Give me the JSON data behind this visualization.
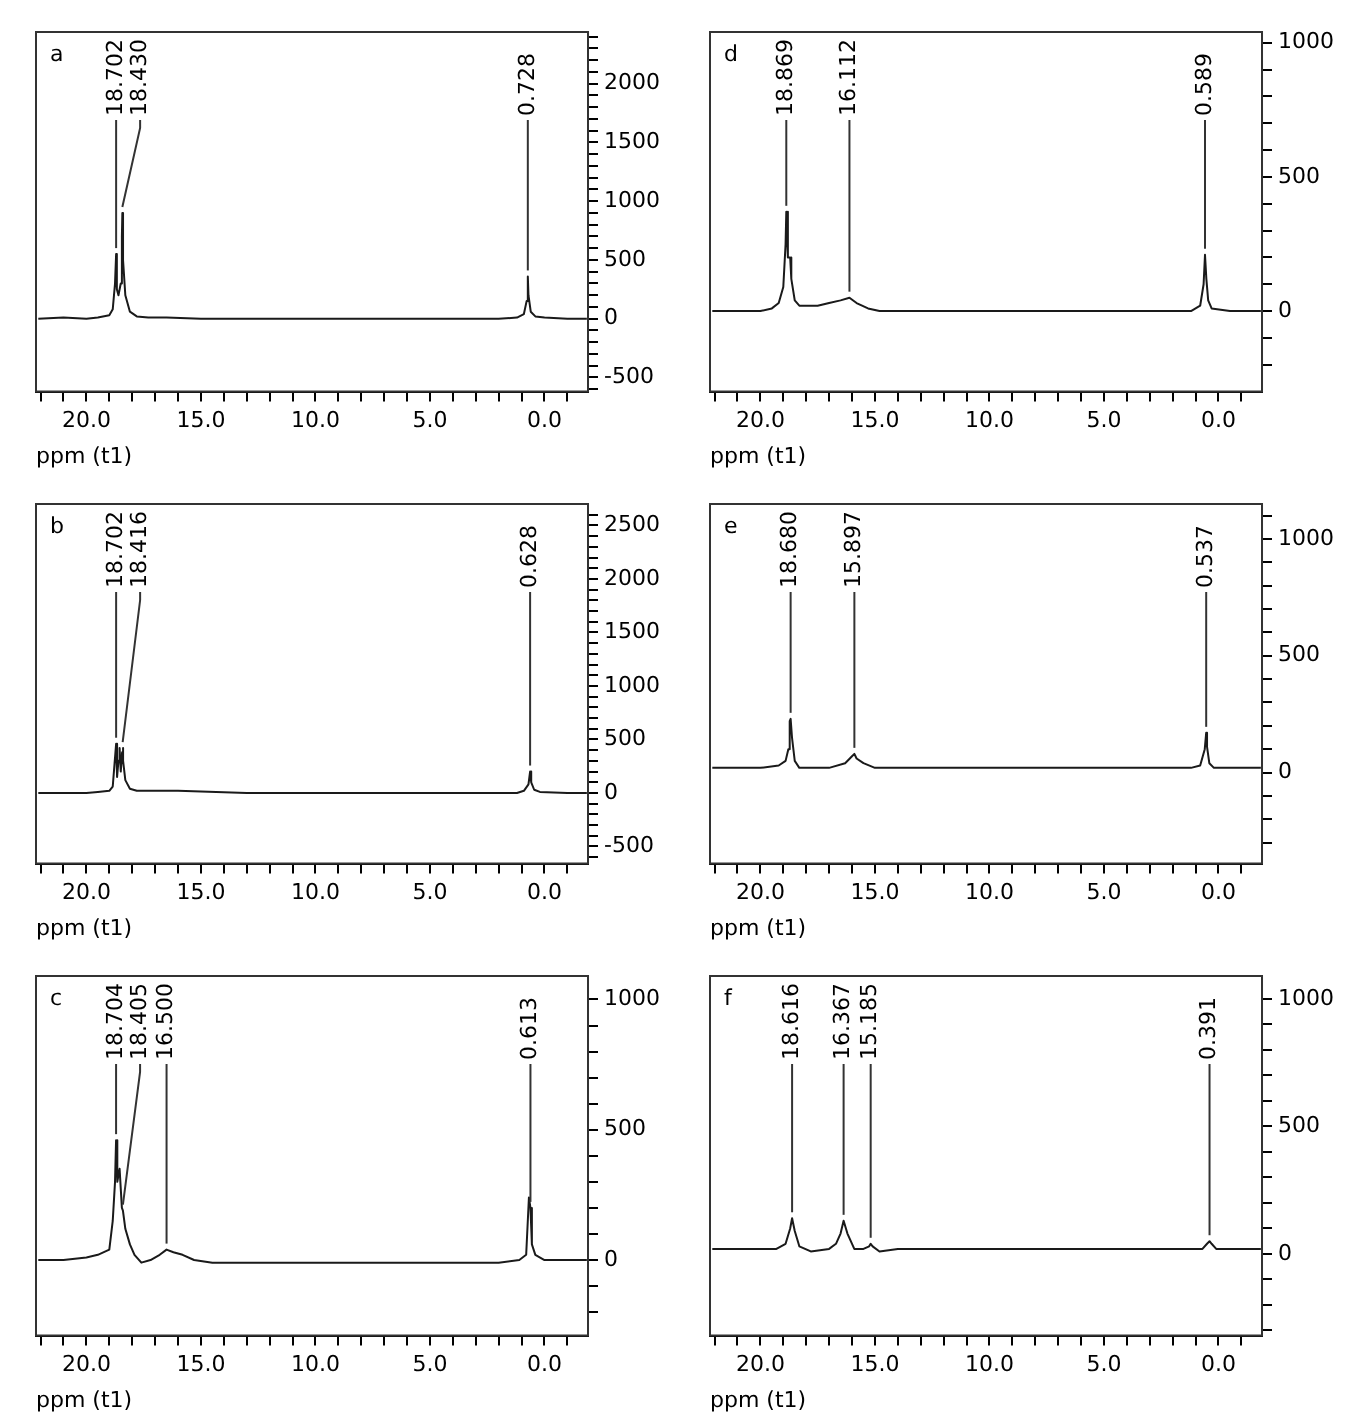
{
  "chart_data": [
    {
      "type": "line",
      "title": "a",
      "xlabel": "ppm (t1)",
      "xlim": [
        22.2,
        -1.9
      ],
      "ylim": [
        -620,
        2440
      ],
      "xticks": [
        {
          "value": 22,
          "label": null
        },
        {
          "value": 21,
          "label": null
        },
        {
          "value": 20,
          "label": "20.0"
        },
        {
          "value": 19,
          "label": null
        },
        {
          "value": 18,
          "label": null
        },
        {
          "value": 17,
          "label": null
        },
        {
          "value": 16,
          "label": null
        },
        {
          "value": 15,
          "label": "15.0"
        },
        {
          "value": 14,
          "label": null
        },
        {
          "value": 13,
          "label": null
        },
        {
          "value": 12,
          "label": null
        },
        {
          "value": 11,
          "label": null
        },
        {
          "value": 10,
          "label": "10.0"
        },
        {
          "value": 9,
          "label": null
        },
        {
          "value": 8,
          "label": null
        },
        {
          "value": 7,
          "label": null
        },
        {
          "value": 6,
          "label": null
        },
        {
          "value": 5,
          "label": "5.0"
        },
        {
          "value": 4,
          "label": null
        },
        {
          "value": 3,
          "label": null
        },
        {
          "value": 2,
          "label": null
        },
        {
          "value": 1,
          "label": null
        },
        {
          "value": 0,
          "label": "0.0"
        },
        {
          "value": -1,
          "label": null
        }
      ],
      "yticks": [
        {
          "value": -600,
          "label": null
        },
        -500,
        {
          "value": -400,
          "label": null
        },
        {
          "value": -300,
          "label": null
        },
        {
          "value": -200,
          "label": null
        },
        {
          "value": -100,
          "label": null
        },
        0,
        {
          "value": 100,
          "label": null
        },
        {
          "value": 200,
          "label": null
        },
        {
          "value": 300,
          "label": null
        },
        {
          "value": 400,
          "label": null
        },
        500,
        {
          "value": 600,
          "label": null
        },
        {
          "value": 700,
          "label": null
        },
        {
          "value": 800,
          "label": null
        },
        {
          "value": 900,
          "label": null
        },
        1000,
        {
          "value": 1100,
          "label": null
        },
        {
          "value": 1200,
          "label": null
        },
        {
          "value": 1300,
          "label": null
        },
        {
          "value": 1400,
          "label": null
        },
        1500,
        {
          "value": 1600,
          "label": null
        },
        {
          "value": 1700,
          "label": null
        },
        {
          "value": 1800,
          "label": null
        },
        {
          "value": 1900,
          "label": null
        },
        2000,
        {
          "value": 2100,
          "label": null
        },
        {
          "value": 2200,
          "label": null
        },
        {
          "value": 2300,
          "label": null
        },
        {
          "value": 2400,
          "label": null
        }
      ],
      "series": [
        {
          "color": "#1a1a1a",
          "x": [
            22.1,
            21,
            20,
            19.5,
            19,
            18.85,
            18.75,
            18.702,
            18.67,
            18.6,
            18.5,
            18.45,
            18.43,
            18.4,
            18.3,
            18.1,
            17.8,
            17.3,
            16.5,
            15,
            13,
            10,
            7,
            4,
            2,
            1.2,
            0.9,
            0.78,
            0.728,
            0.7,
            0.6,
            0.4,
            0,
            -1,
            -1.85
          ],
          "values": [
            0,
            10,
            0,
            10,
            30,
            80,
            300,
            550,
            250,
            200,
            300,
            700,
            900,
            500,
            200,
            60,
            20,
            10,
            10,
            0,
            0,
            0,
            0,
            0,
            0,
            10,
            40,
            150,
            360,
            200,
            60,
            20,
            10,
            0,
            0
          ]
        }
      ],
      "annotations": [
        {
          "text": "18.702",
          "x": 18.702,
          "y": 550
        },
        {
          "text": "18.430",
          "x": 18.43,
          "y": 900
        },
        {
          "text": "0.728",
          "x": 0.728,
          "y": 360
        }
      ]
    },
    {
      "type": "line",
      "title": "d",
      "xlabel": "ppm (t1)",
      "xlim": [
        22.2,
        -1.9
      ],
      "ylim": [
        -300,
        1040
      ],
      "xticks": [
        {
          "value": 22,
          "label": null
        },
        {
          "value": 21,
          "label": null
        },
        {
          "value": 20,
          "label": "20.0"
        },
        {
          "value": 19,
          "label": null
        },
        {
          "value": 18,
          "label": null
        },
        {
          "value": 17,
          "label": null
        },
        {
          "value": 16,
          "label": null
        },
        {
          "value": 15,
          "label": "15.0"
        },
        {
          "value": 14,
          "label": null
        },
        {
          "value": 13,
          "label": null
        },
        {
          "value": 12,
          "label": null
        },
        {
          "value": 11,
          "label": null
        },
        {
          "value": 10,
          "label": "10.0"
        },
        {
          "value": 9,
          "label": null
        },
        {
          "value": 8,
          "label": null
        },
        {
          "value": 7,
          "label": null
        },
        {
          "value": 6,
          "label": null
        },
        {
          "value": 5,
          "label": "5.0"
        },
        {
          "value": 4,
          "label": null
        },
        {
          "value": 3,
          "label": null
        },
        {
          "value": 2,
          "label": null
        },
        {
          "value": 1,
          "label": null
        },
        {
          "value": 0,
          "label": "0.0"
        },
        {
          "value": -1,
          "label": null
        }
      ],
      "yticks": [
        {
          "value": -200,
          "label": null
        },
        {
          "value": -100,
          "label": null
        },
        0,
        {
          "value": 100,
          "label": null
        },
        {
          "value": 200,
          "label": null
        },
        {
          "value": 300,
          "label": null
        },
        {
          "value": 400,
          "label": null
        },
        500,
        {
          "value": 600,
          "label": null
        },
        {
          "value": 700,
          "label": null
        },
        {
          "value": 800,
          "label": null
        },
        {
          "value": 900,
          "label": null
        },
        1000
      ],
      "series": [
        {
          "color": "#1a1a1a",
          "x": [
            22.1,
            21,
            20,
            19.5,
            19.2,
            19.0,
            18.9,
            18.869,
            18.8,
            18.7,
            18.65,
            18.5,
            18.3,
            18,
            17.5,
            17,
            16.5,
            16.112,
            15.8,
            15.3,
            14.8,
            13,
            10,
            7,
            4,
            2,
            1.2,
            0.8,
            0.65,
            0.589,
            0.53,
            0.45,
            0.3,
            -0.5,
            -1.85
          ],
          "values": [
            0,
            0,
            0,
            10,
            30,
            90,
            250,
            370,
            200,
            200,
            120,
            40,
            20,
            20,
            20,
            30,
            40,
            50,
            30,
            10,
            0,
            0,
            0,
            0,
            0,
            0,
            0,
            20,
            100,
            210,
            120,
            40,
            10,
            0,
            0
          ]
        }
      ],
      "annotations": [
        {
          "text": "18.869",
          "x": 18.869,
          "y": 370
        },
        {
          "text": "16.112",
          "x": 16.112,
          "y": 50
        },
        {
          "text": "0.589",
          "x": 0.589,
          "y": 210
        }
      ]
    },
    {
      "type": "line",
      "title": "b",
      "xlabel": "ppm (t1)",
      "xlim": [
        22.2,
        -1.9
      ],
      "ylim": [
        -660,
        2700
      ],
      "xticks": [
        {
          "value": 22,
          "label": null
        },
        {
          "value": 21,
          "label": null
        },
        {
          "value": 20,
          "label": "20.0"
        },
        {
          "value": 19,
          "label": null
        },
        {
          "value": 18,
          "label": null
        },
        {
          "value": 17,
          "label": null
        },
        {
          "value": 16,
          "label": null
        },
        {
          "value": 15,
          "label": "15.0"
        },
        {
          "value": 14,
          "label": null
        },
        {
          "value": 13,
          "label": null
        },
        {
          "value": 12,
          "label": null
        },
        {
          "value": 11,
          "label": null
        },
        {
          "value": 10,
          "label": "10.0"
        },
        {
          "value": 9,
          "label": null
        },
        {
          "value": 8,
          "label": null
        },
        {
          "value": 7,
          "label": null
        },
        {
          "value": 6,
          "label": null
        },
        {
          "value": 5,
          "label": "5.0"
        },
        {
          "value": 4,
          "label": null
        },
        {
          "value": 3,
          "label": null
        },
        {
          "value": 2,
          "label": null
        },
        {
          "value": 1,
          "label": null
        },
        {
          "value": 0,
          "label": "0.0"
        },
        {
          "value": -1,
          "label": null
        }
      ],
      "yticks": [
        {
          "value": -600,
          "label": null
        },
        -500,
        {
          "value": -400,
          "label": null
        },
        {
          "value": -300,
          "label": null
        },
        {
          "value": -200,
          "label": null
        },
        {
          "value": -100,
          "label": null
        },
        0,
        {
          "value": 100,
          "label": null
        },
        {
          "value": 200,
          "label": null
        },
        {
          "value": 300,
          "label": null
        },
        {
          "value": 400,
          "label": null
        },
        500,
        {
          "value": 600,
          "label": null
        },
        {
          "value": 700,
          "label": null
        },
        {
          "value": 800,
          "label": null
        },
        {
          "value": 900,
          "label": null
        },
        1000,
        {
          "value": 1100,
          "label": null
        },
        {
          "value": 1200,
          "label": null
        },
        {
          "value": 1300,
          "label": null
        },
        {
          "value": 1400,
          "label": null
        },
        1500,
        {
          "value": 1600,
          "label": null
        },
        {
          "value": 1700,
          "label": null
        },
        {
          "value": 1800,
          "label": null
        },
        {
          "value": 1900,
          "label": null
        },
        2000,
        {
          "value": 2100,
          "label": null
        },
        {
          "value": 2200,
          "label": null
        },
        {
          "value": 2300,
          "label": null
        },
        {
          "value": 2400,
          "label": null
        },
        2500,
        {
          "value": 2600,
          "label": null
        }
      ],
      "series": [
        {
          "color": "#1a1a1a",
          "x": [
            22.1,
            21,
            20,
            19.5,
            19,
            18.85,
            18.702,
            18.66,
            18.6,
            18.55,
            18.5,
            18.44,
            18.416,
            18.38,
            18.3,
            18.1,
            17.8,
            17,
            16,
            13,
            10,
            7,
            4,
            2,
            1.2,
            0.9,
            0.7,
            0.628,
            0.58,
            0.45,
            0.2,
            -1,
            -1.85
          ],
          "values": [
            0,
            0,
            0,
            10,
            20,
            60,
            460,
            150,
            300,
            420,
            200,
            380,
            420,
            300,
            120,
            40,
            20,
            20,
            20,
            0,
            0,
            0,
            0,
            0,
            0,
            20,
            80,
            200,
            100,
            30,
            10,
            0,
            0
          ]
        }
      ],
      "annotations": [
        {
          "text": "18.702",
          "x": 18.702,
          "y": 460
        },
        {
          "text": "18.416",
          "x": 18.416,
          "y": 420
        },
        {
          "text": "0.628",
          "x": 0.628,
          "y": 200
        }
      ]
    },
    {
      "type": "line",
      "title": "e",
      "xlabel": "ppm (t1)",
      "xlim": [
        22.2,
        -1.9
      ],
      "ylim": [
        -390,
        1150
      ],
      "xticks": [
        {
          "value": 22,
          "label": null
        },
        {
          "value": 21,
          "label": null
        },
        {
          "value": 20,
          "label": "20.0"
        },
        {
          "value": 19,
          "label": null
        },
        {
          "value": 18,
          "label": null
        },
        {
          "value": 17,
          "label": null
        },
        {
          "value": 16,
          "label": null
        },
        {
          "value": 15,
          "label": "15.0"
        },
        {
          "value": 14,
          "label": null
        },
        {
          "value": 13,
          "label": null
        },
        {
          "value": 12,
          "label": null
        },
        {
          "value": 11,
          "label": null
        },
        {
          "value": 10,
          "label": "10.0"
        },
        {
          "value": 9,
          "label": null
        },
        {
          "value": 8,
          "label": null
        },
        {
          "value": 7,
          "label": null
        },
        {
          "value": 6,
          "label": null
        },
        {
          "value": 5,
          "label": "5.0"
        },
        {
          "value": 4,
          "label": null
        },
        {
          "value": 3,
          "label": null
        },
        {
          "value": 2,
          "label": null
        },
        {
          "value": 1,
          "label": null
        },
        {
          "value": 0,
          "label": "0.0"
        },
        {
          "value": -1,
          "label": null
        }
      ],
      "yticks": [
        {
          "value": -300,
          "label": null
        },
        {
          "value": -200,
          "label": null
        },
        {
          "value": -100,
          "label": null
        },
        0,
        {
          "value": 100,
          "label": null
        },
        {
          "value": 200,
          "label": null
        },
        {
          "value": 300,
          "label": null
        },
        {
          "value": 400,
          "label": null
        },
        500,
        {
          "value": 600,
          "label": null
        },
        {
          "value": 700,
          "label": null
        },
        {
          "value": 800,
          "label": null
        },
        {
          "value": 900,
          "label": null
        },
        1000,
        {
          "value": 1100,
          "label": null
        }
      ],
      "series": [
        {
          "color": "#1a1a1a",
          "x": [
            22.1,
            21,
            20,
            19.2,
            18.9,
            18.78,
            18.72,
            18.68,
            18.62,
            18.5,
            18.3,
            17.8,
            17,
            16.3,
            16,
            15.897,
            15.8,
            15.5,
            15,
            13,
            10,
            7,
            4,
            2,
            1.2,
            0.8,
            0.6,
            0.537,
            0.5,
            0.4,
            0.2,
            -1,
            -1.85
          ],
          "values": [
            20,
            20,
            20,
            30,
            50,
            100,
            220,
            230,
            150,
            50,
            20,
            20,
            20,
            40,
            70,
            80,
            60,
            40,
            20,
            20,
            20,
            20,
            20,
            20,
            20,
            30,
            100,
            170,
            110,
            40,
            20,
            20,
            20
          ]
        }
      ],
      "annotations": [
        {
          "text": "18.680",
          "x": 18.68,
          "y": 230
        },
        {
          "text": "15.897",
          "x": 15.897,
          "y": 80
        },
        {
          "text": "0.537",
          "x": 0.537,
          "y": 170
        }
      ]
    },
    {
      "type": "line",
      "title": "c",
      "xlabel": "ppm (t1)",
      "xlim": [
        22.2,
        -1.9
      ],
      "ylim": [
        -290,
        1090
      ],
      "xticks": [
        {
          "value": 22,
          "label": null
        },
        {
          "value": 21,
          "label": null
        },
        {
          "value": 20,
          "label": "20.0"
        },
        {
          "value": 19,
          "label": null
        },
        {
          "value": 18,
          "label": null
        },
        {
          "value": 17,
          "label": null
        },
        {
          "value": 16,
          "label": null
        },
        {
          "value": 15,
          "label": "15.0"
        },
        {
          "value": 14,
          "label": null
        },
        {
          "value": 13,
          "label": null
        },
        {
          "value": 12,
          "label": null
        },
        {
          "value": 11,
          "label": null
        },
        {
          "value": 10,
          "label": "10.0"
        },
        {
          "value": 9,
          "label": null
        },
        {
          "value": 8,
          "label": null
        },
        {
          "value": 7,
          "label": null
        },
        {
          "value": 6,
          "label": null
        },
        {
          "value": 5,
          "label": "5.0"
        },
        {
          "value": 4,
          "label": null
        },
        {
          "value": 3,
          "label": null
        },
        {
          "value": 2,
          "label": null
        },
        {
          "value": 1,
          "label": null
        },
        {
          "value": 0,
          "label": "0.0"
        },
        {
          "value": -1,
          "label": null
        }
      ],
      "yticks": [
        {
          "value": -200,
          "label": null
        },
        {
          "value": -100,
          "label": null
        },
        0,
        {
          "value": 100,
          "label": null
        },
        {
          "value": 200,
          "label": null
        },
        {
          "value": 300,
          "label": null
        },
        {
          "value": 400,
          "label": null
        },
        500,
        {
          "value": 600,
          "label": null
        },
        {
          "value": 700,
          "label": null
        },
        {
          "value": 800,
          "label": null
        },
        {
          "value": 900,
          "label": null
        },
        1000
      ],
      "series": [
        {
          "color": "#1a1a1a",
          "x": [
            22.1,
            21,
            20,
            19.5,
            19,
            18.85,
            18.75,
            18.704,
            18.65,
            18.55,
            18.45,
            18.405,
            18.3,
            18.1,
            17.9,
            17.6,
            17.2,
            16.8,
            16.5,
            16.2,
            15.8,
            15.3,
            14.5,
            13,
            10,
            7,
            4,
            2,
            1.1,
            0.8,
            0.68,
            0.613,
            0.55,
            0.4,
            0,
            -1,
            -1.85
          ],
          "values": [
            0,
            0,
            10,
            20,
            40,
            150,
            300,
            460,
            300,
            350,
            200,
            190,
            120,
            60,
            20,
            -10,
            0,
            20,
            40,
            30,
            20,
            0,
            -10,
            -10,
            -10,
            -10,
            -10,
            -10,
            0,
            20,
            240,
            200,
            60,
            20,
            0,
            0,
            0
          ]
        }
      ],
      "annotations": [
        {
          "text": "18.704",
          "x": 18.704,
          "y": 460
        },
        {
          "text": "18.405",
          "x": 18.405,
          "y": 190
        },
        {
          "text": "16.500",
          "x": 16.5,
          "y": 40
        },
        {
          "text": "0.613",
          "x": 0.613,
          "y": 200
        }
      ]
    },
    {
      "type": "line",
      "title": "f",
      "xlabel": "ppm (t1)",
      "xlim": [
        22.2,
        -1.9
      ],
      "ylim": [
        -320,
        1090
      ],
      "xticks": [
        {
          "value": 22,
          "label": null
        },
        {
          "value": 21,
          "label": null
        },
        {
          "value": 20,
          "label": "20.0"
        },
        {
          "value": 19,
          "label": null
        },
        {
          "value": 18,
          "label": null
        },
        {
          "value": 17,
          "label": null
        },
        {
          "value": 16,
          "label": null
        },
        {
          "value": 15,
          "label": "15.0"
        },
        {
          "value": 14,
          "label": null
        },
        {
          "value": 13,
          "label": null
        },
        {
          "value": 12,
          "label": null
        },
        {
          "value": 11,
          "label": null
        },
        {
          "value": 10,
          "label": "10.0"
        },
        {
          "value": 9,
          "label": null
        },
        {
          "value": 8,
          "label": null
        },
        {
          "value": 7,
          "label": null
        },
        {
          "value": 6,
          "label": null
        },
        {
          "value": 5,
          "label": "5.0"
        },
        {
          "value": 4,
          "label": null
        },
        {
          "value": 3,
          "label": null
        },
        {
          "value": 2,
          "label": null
        },
        {
          "value": 1,
          "label": null
        },
        {
          "value": 0,
          "label": "0.0"
        },
        {
          "value": -1,
          "label": null
        }
      ],
      "yticks": [
        {
          "value": -300,
          "label": null
        },
        {
          "value": -200,
          "label": null
        },
        {
          "value": -100,
          "label": null
        },
        0,
        {
          "value": 100,
          "label": null
        },
        {
          "value": 200,
          "label": null
        },
        {
          "value": 300,
          "label": null
        },
        {
          "value": 400,
          "label": null
        },
        500,
        {
          "value": 600,
          "label": null
        },
        {
          "value": 700,
          "label": null
        },
        {
          "value": 800,
          "label": null
        },
        {
          "value": 900,
          "label": null
        },
        1000
      ],
      "series": [
        {
          "color": "#1a1a1a",
          "x": [
            22.1,
            21,
            20,
            19.3,
            18.9,
            18.7,
            18.616,
            18.5,
            18.3,
            17.8,
            17,
            16.7,
            16.5,
            16.367,
            16.2,
            15.9,
            15.5,
            15.25,
            15.185,
            15.1,
            14.8,
            14,
            10,
            7,
            4,
            2,
            1.2,
            0.7,
            0.5,
            0.391,
            0.3,
            0.1,
            -0.3,
            -1,
            -1.85
          ],
          "values": [
            20,
            20,
            20,
            20,
            40,
            100,
            140,
            90,
            30,
            10,
            20,
            40,
            80,
            130,
            80,
            20,
            20,
            30,
            40,
            30,
            10,
            20,
            20,
            20,
            20,
            20,
            20,
            20,
            40,
            50,
            40,
            20,
            20,
            20,
            20
          ]
        }
      ],
      "annotations": [
        {
          "text": "18.616",
          "x": 18.616,
          "y": 140
        },
        {
          "text": "16.367",
          "x": 16.367,
          "y": 130
        },
        {
          "text": "15.185",
          "x": 15.185,
          "y": 40
        },
        {
          "text": "0.391",
          "x": 0.391,
          "y": 50
        }
      ]
    }
  ]
}
